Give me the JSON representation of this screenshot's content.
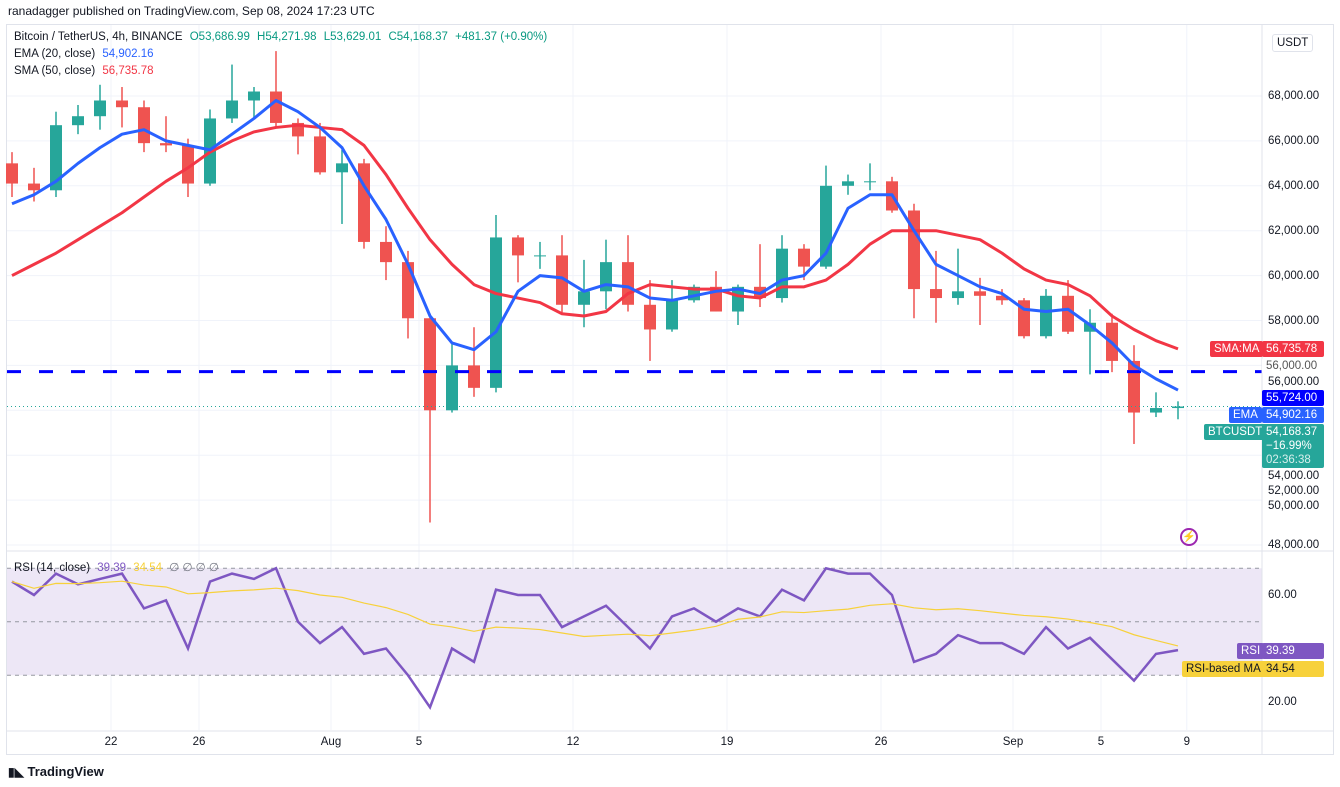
{
  "header": {
    "published": "ranadagger published on TradingView.com, Sep 08, 2024 17:23 UTC"
  },
  "legend": {
    "symbol": "Bitcoin / TetherUS, 4h, BINANCE",
    "open": "O53,686.99",
    "high": "H54,271.98",
    "low": "L53,629.01",
    "close": "C54,168.37",
    "change": "+481.37 (+0.90%)",
    "ema_label": "EMA (20, close)",
    "ema_value": "54,902.16",
    "sma_label": "SMA (50, close)",
    "sma_value": "56,735.78",
    "rsi_label": "RSI (14, close)",
    "rsi_value": "39.39",
    "rsi_ma_value": "34.54",
    "rsi_extra": "∅ ∅ ∅ ∅"
  },
  "axis": {
    "currency": "USDT"
  },
  "tags": {
    "sma_name": "SMA:MA",
    "sma_price": "56,735.78",
    "hidden_price": "56,000.00",
    "hline_price": "55,724.00",
    "ema_name": "EMA",
    "ema_price": "54,902.16",
    "symbol_name": "BTCUSDT",
    "last_price": "54,168.37",
    "last_change": "−16.99%",
    "countdown": "02:36:38",
    "rsi_name": "RSI",
    "rsi_price": "39.39",
    "rsi_ma_name": "RSI-based MA",
    "rsi_ma_price": "34.54"
  },
  "footer": {
    "logo": "TradingView"
  },
  "colors": {
    "up": "#26a69a",
    "down": "#ef5350",
    "ema": "#2962ff",
    "sma": "#f23645",
    "hline": "#0000ff",
    "rsi": "#7e57c2",
    "rsi_ma": "#f7d13b",
    "rsi_band": "#ede7f6"
  },
  "chart_data": [
    {
      "type": "candlestick",
      "title": "Bitcoin / TetherUS, 4h, BINANCE",
      "x_start": "2024-07-17",
      "x_end": "2024-09-08",
      "x_ticks": [
        "22",
        "26",
        "Aug",
        "5",
        "12",
        "19",
        "26",
        "Sep",
        "5",
        "9"
      ],
      "y_ticks": [
        "48,000.00",
        "50,000.00",
        "52,000.00",
        "54,000.00",
        "56,000.00",
        "58,000.00",
        "60,000.00",
        "62,000.00",
        "64,000.00",
        "66,000.00",
        "68,000.00"
      ],
      "ylim": [
        47000,
        70500
      ],
      "grid": true,
      "horizontal_line": 55724,
      "ohlc_daily_approx": [
        [
          65000,
          65500,
          63500,
          64100
        ],
        [
          64100,
          64800,
          63300,
          63800
        ],
        [
          63800,
          67300,
          63500,
          66700
        ],
        [
          66700,
          67600,
          66300,
          67100
        ],
        [
          67100,
          68500,
          66500,
          67800
        ],
        [
          67800,
          68400,
          66600,
          67500
        ],
        [
          67500,
          67800,
          65500,
          65900
        ],
        [
          65900,
          67100,
          65500,
          65800
        ],
        [
          65800,
          66100,
          63500,
          64100
        ],
        [
          64100,
          67400,
          64000,
          67000
        ],
        [
          67000,
          69400,
          66800,
          67800
        ],
        [
          67800,
          68400,
          67000,
          68200
        ],
        [
          68200,
          70000,
          66600,
          66800
        ],
        [
          66800,
          67000,
          65400,
          66200
        ],
        [
          66200,
          66800,
          64500,
          64600
        ],
        [
          64600,
          65600,
          62300,
          65000
        ],
        [
          65000,
          65200,
          61200,
          61500
        ],
        [
          61500,
          62200,
          59800,
          60600
        ],
        [
          60600,
          61100,
          57200,
          58100
        ],
        [
          58100,
          58300,
          49000,
          54000
        ],
        [
          54000,
          57000,
          53900,
          56000
        ],
        [
          56000,
          57700,
          54600,
          55000
        ],
        [
          55000,
          62700,
          54800,
          61700
        ],
        [
          61700,
          61800,
          59700,
          60900
        ],
        [
          60900,
          61500,
          60300,
          60900
        ],
        [
          60900,
          61800,
          58300,
          58700
        ],
        [
          58700,
          60700,
          57700,
          59300
        ],
        [
          59300,
          61600,
          58500,
          60600
        ],
        [
          60600,
          61800,
          58400,
          58700
        ],
        [
          58700,
          59800,
          56200,
          57600
        ],
        [
          57600,
          59800,
          57500,
          58900
        ],
        [
          58900,
          59600,
          58800,
          59500
        ],
        [
          59500,
          60200,
          58400,
          58400
        ],
        [
          58400,
          59600,
          57800,
          59500
        ],
        [
          59500,
          61400,
          58600,
          59000
        ],
        [
          59000,
          61800,
          58800,
          61200
        ],
        [
          61200,
          61400,
          59800,
          60400
        ],
        [
          60400,
          64900,
          60300,
          64000
        ],
        [
          64000,
          64500,
          63600,
          64200
        ],
        [
          64200,
          65000,
          63800,
          64200
        ],
        [
          64200,
          64400,
          62800,
          62900
        ],
        [
          62900,
          63200,
          58100,
          59400
        ],
        [
          59400,
          61100,
          57900,
          59000
        ],
        [
          59000,
          61200,
          58700,
          59300
        ],
        [
          59300,
          59900,
          57800,
          59100
        ],
        [
          59100,
          59400,
          58700,
          58900
        ],
        [
          58900,
          59000,
          57200,
          57300
        ],
        [
          57300,
          59400,
          57200,
          59100
        ],
        [
          59100,
          59800,
          57400,
          57500
        ],
        [
          57500,
          58500,
          55600,
          57900
        ],
        [
          57900,
          58300,
          55700,
          56200
        ],
        [
          56200,
          56900,
          52500,
          53900
        ],
        [
          53900,
          54800,
          53700,
          54100
        ],
        [
          54100,
          54400,
          53600,
          54168.37
        ]
      ],
      "series": [
        {
          "name": "EMA (20, close)",
          "values": [
            63200,
            63600,
            64200,
            65000,
            65700,
            66300,
            66500,
            66000,
            65800,
            65600,
            66300,
            67000,
            67800,
            67300,
            66600,
            65700,
            64000,
            62500,
            60500,
            58200,
            57000,
            56700,
            57500,
            59300,
            60000,
            59900,
            59300,
            59600,
            59500,
            59000,
            58900,
            59100,
            59300,
            59400,
            59200,
            59800,
            60000,
            61000,
            63000,
            63600,
            63600,
            62000,
            60500,
            60000,
            59500,
            59200,
            58500,
            58400,
            58500,
            57800,
            57000,
            56000,
            55400,
            54902
          ]
        },
        {
          "name": "SMA (50, close)",
          "values": [
            60000,
            60500,
            61000,
            61600,
            62200,
            62800,
            63500,
            64200,
            64800,
            65500,
            66000,
            66400,
            66600,
            66700,
            66600,
            66500,
            65800,
            64500,
            63000,
            61600,
            60500,
            59600,
            59200,
            59000,
            58800,
            58300,
            58200,
            58400,
            59200,
            59600,
            59500,
            59400,
            59400,
            59100,
            59000,
            59500,
            59500,
            59800,
            60500,
            61400,
            62000,
            62000,
            62000,
            61800,
            61600,
            61000,
            60300,
            59800,
            59600,
            59100,
            58200,
            57600,
            57100,
            56736
          ]
        }
      ]
    },
    {
      "type": "line",
      "title": "RSI (14, close)",
      "y_ticks": [
        "20.00",
        "60.00"
      ],
      "bands": [
        30,
        70
      ],
      "ylim": [
        12,
        76
      ],
      "series": [
        {
          "name": "RSI",
          "values": [
            65,
            60,
            68,
            64,
            66,
            68,
            55,
            58,
            40,
            65,
            68,
            66,
            70,
            50,
            42,
            48,
            38,
            40,
            30,
            18,
            40,
            35,
            62,
            60,
            60,
            48,
            52,
            56,
            48,
            40,
            52,
            55,
            50,
            55,
            52,
            62,
            58,
            70,
            68,
            68,
            60,
            35,
            38,
            45,
            42,
            42,
            38,
            48,
            40,
            44,
            36,
            28,
            38,
            39.39
          ]
        }
      ]
    }
  ]
}
